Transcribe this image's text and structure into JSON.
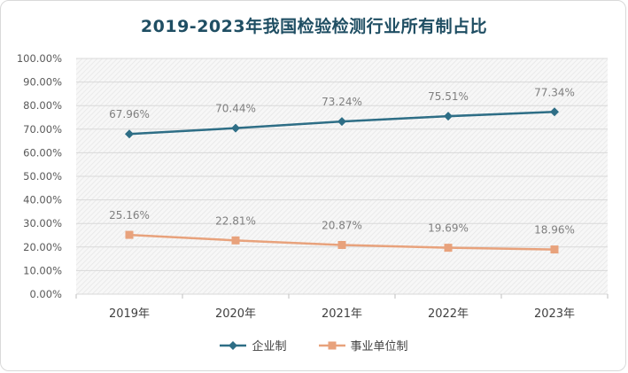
{
  "chart_data": {
    "type": "line",
    "title": "2019-2023年我国检验检测行业所有制占比",
    "categories": [
      "2019年",
      "2020年",
      "2021年",
      "2022年",
      "2023年"
    ],
    "ylim": [
      0,
      100
    ],
    "yticks": [
      "0.00%",
      "10.00%",
      "20.00%",
      "30.00%",
      "40.00%",
      "50.00%",
      "60.00%",
      "70.00%",
      "80.00%",
      "90.00%",
      "100.00%"
    ],
    "series": [
      {
        "name": "企业制",
        "values": [
          67.96,
          70.44,
          73.24,
          75.51,
          77.34
        ],
        "labels": [
          "67.96%",
          "70.44%",
          "73.24%",
          "75.51%",
          "77.34%"
        ],
        "color": "#2e6e86",
        "marker": "diamond"
      },
      {
        "name": "事业单位制",
        "values": [
          25.16,
          22.81,
          20.87,
          19.69,
          18.96
        ],
        "labels": [
          "25.16%",
          "22.81%",
          "20.87%",
          "19.69%",
          "18.96%"
        ],
        "color": "#e8a27c",
        "marker": "square"
      }
    ],
    "grid": true,
    "legend": "bottom"
  }
}
